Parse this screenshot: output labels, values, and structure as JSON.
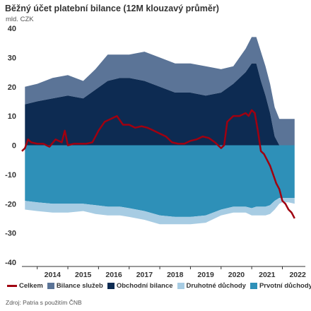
{
  "chart_data": {
    "type": "area",
    "title": "Běžný účet platební bilance (12M klouzavý průměr)",
    "ylabel": "mld. CZK",
    "ylim": [
      -40,
      40
    ],
    "yticks": [
      40,
      30,
      20,
      10,
      0,
      -10,
      -20,
      -30,
      -40
    ],
    "xticks": [
      "2014",
      "2015",
      "2016",
      "2017",
      "2018",
      "2019",
      "2020",
      "2021",
      "2022"
    ],
    "x_range": [
      2013.5,
      2022.75
    ],
    "grid": false,
    "legend_position": "bottom",
    "colors": {
      "celkem": "#a00010",
      "bilance_sluzeb": "#5b7497",
      "obchodni_bilance": "#0d2b52",
      "druhotne_duchody": "#a7cce3",
      "prvotni_duchody": "#2e90b8"
    },
    "series": [
      {
        "name": "Obchodní bilance",
        "key": "obchodni_bilance",
        "x": [
          2013.6,
          2014.0,
          2014.5,
          2015.0,
          2015.5,
          2015.9,
          2016.3,
          2016.7,
          2017.0,
          2017.5,
          2018.0,
          2018.5,
          2019.0,
          2019.5,
          2020.0,
          2020.4,
          2020.8,
          2021.0,
          2021.15,
          2021.3,
          2021.45,
          2021.6,
          2021.75,
          2021.9,
          2022.0,
          2022.2,
          2022.4
        ],
        "values": [
          14,
          15,
          16,
          17,
          16,
          19,
          22,
          23,
          23,
          22,
          20,
          18,
          18,
          17,
          18,
          21,
          25,
          28,
          28,
          22,
          17,
          11,
          3,
          0,
          0,
          0,
          0
        ]
      },
      {
        "name": "Bilance služeb",
        "key": "bilance_sluzeb",
        "x": [
          2013.6,
          2014.0,
          2014.5,
          2015.0,
          2015.5,
          2015.9,
          2016.3,
          2016.7,
          2017.0,
          2017.5,
          2018.0,
          2018.5,
          2019.0,
          2019.5,
          2020.0,
          2020.4,
          2020.8,
          2021.0,
          2021.15,
          2021.3,
          2021.45,
          2021.6,
          2021.75,
          2021.9,
          2022.0,
          2022.2,
          2022.4
        ],
        "values": [
          6,
          6,
          7,
          7,
          6,
          7,
          9,
          8,
          8,
          10,
          10,
          10,
          10,
          10,
          8,
          6,
          8,
          9,
          9,
          10,
          10,
          10,
          10,
          9,
          9,
          9,
          9
        ]
      },
      {
        "name": "Prvotní důchody",
        "key": "prvotni_duchody",
        "x": [
          2013.6,
          2014.0,
          2014.5,
          2015.0,
          2015.5,
          2015.9,
          2016.3,
          2016.7,
          2017.0,
          2017.5,
          2018.0,
          2018.5,
          2019.0,
          2019.5,
          2020.0,
          2020.4,
          2020.8,
          2021.0,
          2021.15,
          2021.3,
          2021.45,
          2021.6,
          2021.75,
          2021.9,
          2022.0,
          2022.2,
          2022.4
        ],
        "values": [
          -19,
          -19.5,
          -20,
          -20,
          -20,
          -20.5,
          -21,
          -21,
          -21.5,
          -22.5,
          -24,
          -24.5,
          -24.5,
          -24,
          -22,
          -21,
          -21,
          -21.5,
          -21,
          -21,
          -21,
          -20.5,
          -19,
          -18,
          -18,
          -18,
          -18
        ]
      },
      {
        "name": "Druhotné důchody",
        "key": "druhotne_duchody",
        "x": [
          2013.6,
          2014.0,
          2014.5,
          2015.0,
          2015.5,
          2015.9,
          2016.3,
          2016.7,
          2017.0,
          2017.5,
          2018.0,
          2018.5,
          2019.0,
          2019.5,
          2020.0,
          2020.4,
          2020.8,
          2021.0,
          2021.15,
          2021.3,
          2021.45,
          2021.6,
          2021.75,
          2021.9,
          2022.0,
          2022.2,
          2022.4
        ],
        "values": [
          -3,
          -3,
          -3,
          -3,
          -2.5,
          -3,
          -3,
          -3,
          -3,
          -3,
          -3,
          -2.5,
          -2.5,
          -2.5,
          -2,
          -2,
          -2,
          -2.5,
          -3,
          -3,
          -3,
          -3,
          -3,
          -2,
          -1.5,
          -1.5,
          -2
        ]
      },
      {
        "name": "Celkem",
        "key": "celkem",
        "type": "line",
        "x": [
          2013.5,
          2013.6,
          2013.7,
          2013.8,
          2014.0,
          2014.2,
          2014.4,
          2014.6,
          2014.8,
          2014.9,
          2015.0,
          2015.2,
          2015.4,
          2015.6,
          2015.8,
          2016.0,
          2016.2,
          2016.4,
          2016.6,
          2016.8,
          2017.0,
          2017.2,
          2017.4,
          2017.6,
          2017.8,
          2018.0,
          2018.2,
          2018.4,
          2018.6,
          2018.8,
          2019.0,
          2019.2,
          2019.4,
          2019.6,
          2019.8,
          2020.0,
          2020.1,
          2020.2,
          2020.4,
          2020.6,
          2020.8,
          2020.9,
          2021.0,
          2021.1,
          2021.2,
          2021.3,
          2021.4,
          2021.5,
          2021.6,
          2021.7,
          2021.8,
          2021.9,
          2022.0,
          2022.1,
          2022.2,
          2022.3,
          2022.4
        ],
        "values": [
          -2,
          -1,
          2,
          1,
          0.5,
          0.5,
          -0.5,
          2,
          1,
          5,
          0,
          0.5,
          0.5,
          0.5,
          1,
          5,
          8,
          9,
          10,
          7,
          7,
          6,
          6.5,
          6,
          5,
          4,
          3,
          1,
          0.5,
          0.5,
          1.5,
          2,
          3,
          2.5,
          1,
          -1,
          0,
          8,
          10,
          10,
          11,
          10,
          12,
          11,
          5,
          -2,
          -3,
          -5,
          -7,
          -10,
          -13,
          -15,
          -19,
          -20,
          -22,
          -23,
          -25
        ]
      }
    ],
    "source": "Zdroj: Patria s použitím ČNB"
  }
}
